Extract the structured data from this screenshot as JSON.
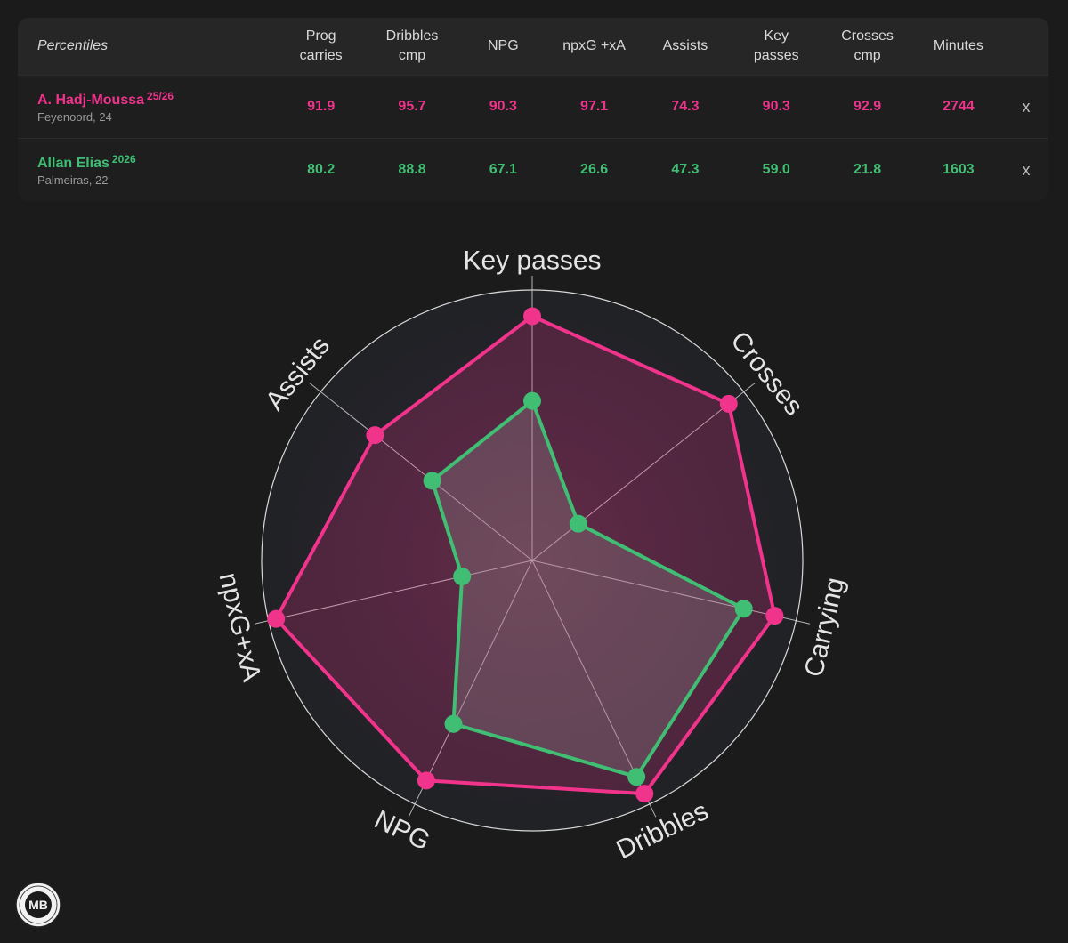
{
  "table": {
    "header_label": "Percentiles",
    "columns": [
      [
        "Prog",
        "carries"
      ],
      [
        "Dribbles",
        "cmp"
      ],
      [
        "NPG"
      ],
      [
        "npxG +xA"
      ],
      [
        "Assists"
      ],
      [
        "Key",
        "passes"
      ],
      [
        "Crosses",
        "cmp"
      ],
      [
        "Minutes"
      ]
    ],
    "remove_label": "x",
    "players": [
      {
        "name": "A. Hadj-Moussa",
        "season": "25/26",
        "club": "Feyenoord, 24",
        "values": [
          "91.9",
          "95.7",
          "90.3",
          "97.1",
          "74.3",
          "90.3",
          "92.9",
          "2744"
        ]
      },
      {
        "name": "Allan Elias",
        "season": "2026",
        "club": "Palmeiras, 22",
        "values": [
          "80.2",
          "88.8",
          "67.1",
          "26.6",
          "47.3",
          "59.0",
          "21.8",
          "1603"
        ]
      }
    ]
  },
  "colors": {
    "player1": "#f0338b",
    "player2": "#3fbe74",
    "background": "#1b1b1b",
    "radar_bg": "#202225",
    "grid": "#d8d8d8"
  },
  "logo": {
    "text": "MB"
  },
  "chart_data": {
    "type": "radar",
    "axes": [
      "Key passes",
      "Crosses",
      "Carrying",
      "Dribbles",
      "NPG",
      "npxG+xA",
      "Assists"
    ],
    "range": [
      0,
      100
    ],
    "series": [
      {
        "name": "A. Hadj-Moussa",
        "values": [
          90.3,
          92.9,
          91.9,
          95.7,
          90.3,
          97.1,
          74.3
        ]
      },
      {
        "name": "Allan Elias",
        "values": [
          59.0,
          21.8,
          80.2,
          88.8,
          67.1,
          26.6,
          47.3
        ]
      }
    ]
  }
}
